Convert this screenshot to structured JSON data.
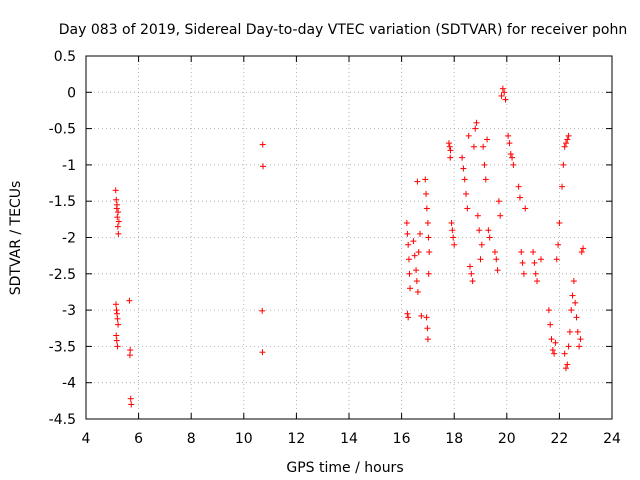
{
  "chart_data": {
    "type": "scatter",
    "title": "Day 083 of 2019, Sidereal Day-to-day VTEC variation (SDTVAR) for receiver pohn",
    "xlabel": "GPS time / hours",
    "ylabel": "SDTVAR / TECUs",
    "xlim": [
      4,
      24
    ],
    "ylim": [
      -4.5,
      0.5
    ],
    "xticks": [
      4,
      6,
      8,
      10,
      12,
      14,
      16,
      18,
      20,
      22,
      24
    ],
    "xtick_labels": [
      "4",
      "6",
      "8",
      "10",
      "12",
      "14",
      "16",
      "18",
      "20",
      "22",
      "24"
    ],
    "yticks": [
      0.5,
      0,
      -0.5,
      -1,
      -1.5,
      -2,
      -2.5,
      -3,
      -3.5,
      -4,
      -4.5
    ],
    "ytick_labels": [
      "0.5",
      "0",
      "-0.5",
      "-1",
      "-1.5",
      "-2",
      "-2.5",
      "-3",
      "-3.5",
      "-4",
      "-4.5"
    ],
    "grid": true,
    "marker": "+",
    "series": [
      {
        "name": "SDTVAR",
        "color": "#ff0000",
        "points": [
          [
            5.13,
            -1.35
          ],
          [
            5.15,
            -1.48
          ],
          [
            5.17,
            -1.6
          ],
          [
            5.19,
            -1.72
          ],
          [
            5.21,
            -1.85
          ],
          [
            5.23,
            -1.95
          ],
          [
            5.18,
            -1.55
          ],
          [
            5.22,
            -1.65
          ],
          [
            5.25,
            -1.78
          ],
          [
            5.14,
            -2.92
          ],
          [
            5.16,
            -3.0
          ],
          [
            5.18,
            -3.05
          ],
          [
            5.2,
            -3.12
          ],
          [
            5.22,
            -3.2
          ],
          [
            5.15,
            -3.35
          ],
          [
            5.17,
            -3.42
          ],
          [
            5.2,
            -3.5
          ],
          [
            5.65,
            -2.87
          ],
          [
            5.68,
            -3.55
          ],
          [
            5.67,
            -3.62
          ],
          [
            5.7,
            -4.22
          ],
          [
            5.72,
            -4.3
          ],
          [
            10.72,
            -0.72
          ],
          [
            10.73,
            -1.02
          ],
          [
            10.7,
            -3.01
          ],
          [
            10.71,
            -3.58
          ],
          [
            16.2,
            -1.8
          ],
          [
            16.22,
            -1.95
          ],
          [
            16.25,
            -2.1
          ],
          [
            16.28,
            -2.3
          ],
          [
            16.3,
            -2.5
          ],
          [
            16.32,
            -2.7
          ],
          [
            16.22,
            -3.05
          ],
          [
            16.25,
            -3.1
          ],
          [
            16.45,
            -2.05
          ],
          [
            16.5,
            -2.25
          ],
          [
            16.55,
            -2.45
          ],
          [
            16.58,
            -2.6
          ],
          [
            16.6,
            -1.23
          ],
          [
            16.62,
            -2.75
          ],
          [
            16.65,
            -2.2
          ],
          [
            16.7,
            -1.95
          ],
          [
            16.75,
            -3.08
          ],
          [
            16.9,
            -1.2
          ],
          [
            16.93,
            -1.4
          ],
          [
            16.96,
            -1.6
          ],
          [
            17.0,
            -1.8
          ],
          [
            17.02,
            -2.0
          ],
          [
            17.05,
            -2.2
          ],
          [
            16.95,
            -3.1
          ],
          [
            16.98,
            -3.25
          ],
          [
            17.0,
            -3.4
          ],
          [
            17.03,
            -2.5
          ],
          [
            17.8,
            -0.7
          ],
          [
            17.83,
            -0.75
          ],
          [
            17.86,
            -0.8
          ],
          [
            17.9,
            -1.8
          ],
          [
            17.93,
            -1.9
          ],
          [
            17.96,
            -2.0
          ],
          [
            18.0,
            -2.1
          ],
          [
            17.85,
            -0.9
          ],
          [
            18.3,
            -0.9
          ],
          [
            18.35,
            -1.05
          ],
          [
            18.4,
            -1.2
          ],
          [
            18.45,
            -1.4
          ],
          [
            18.5,
            -1.6
          ],
          [
            18.55,
            -0.6
          ],
          [
            18.6,
            -2.4
          ],
          [
            18.65,
            -2.5
          ],
          [
            18.7,
            -2.6
          ],
          [
            18.75,
            -0.75
          ],
          [
            18.8,
            -0.5
          ],
          [
            18.85,
            -0.42
          ],
          [
            18.9,
            -1.7
          ],
          [
            18.95,
            -1.9
          ],
          [
            19.0,
            -2.3
          ],
          [
            19.05,
            -2.1
          ],
          [
            19.1,
            -0.75
          ],
          [
            19.15,
            -1.0
          ],
          [
            19.2,
            -1.2
          ],
          [
            19.25,
            -0.65
          ],
          [
            19.3,
            -1.9
          ],
          [
            19.35,
            -2.0
          ],
          [
            19.55,
            -2.2
          ],
          [
            19.6,
            -2.3
          ],
          [
            19.65,
            -2.45
          ],
          [
            19.7,
            -1.5
          ],
          [
            19.75,
            -1.7
          ],
          [
            19.8,
            -0.05
          ],
          [
            19.85,
            0.05
          ],
          [
            19.9,
            0.0
          ],
          [
            19.95,
            -0.1
          ],
          [
            20.05,
            -0.6
          ],
          [
            20.1,
            -0.7
          ],
          [
            20.15,
            -0.85
          ],
          [
            20.2,
            -0.9
          ],
          [
            20.25,
            -1.0
          ],
          [
            20.45,
            -1.3
          ],
          [
            20.5,
            -1.45
          ],
          [
            20.55,
            -2.2
          ],
          [
            20.6,
            -2.35
          ],
          [
            20.65,
            -2.5
          ],
          [
            20.7,
            -1.6
          ],
          [
            21.0,
            -2.2
          ],
          [
            21.05,
            -2.35
          ],
          [
            21.1,
            -2.5
          ],
          [
            21.15,
            -2.6
          ],
          [
            21.3,
            -2.3
          ],
          [
            21.6,
            -3.0
          ],
          [
            21.65,
            -3.2
          ],
          [
            21.7,
            -3.4
          ],
          [
            21.75,
            -3.55
          ],
          [
            21.8,
            -3.6
          ],
          [
            21.85,
            -3.45
          ],
          [
            21.9,
            -2.3
          ],
          [
            21.95,
            -2.1
          ],
          [
            22.0,
            -1.8
          ],
          [
            22.1,
            -1.3
          ],
          [
            22.15,
            -1.0
          ],
          [
            22.2,
            -0.75
          ],
          [
            22.25,
            -0.7
          ],
          [
            22.3,
            -0.65
          ],
          [
            22.35,
            -0.6
          ],
          [
            22.2,
            -3.6
          ],
          [
            22.25,
            -3.8
          ],
          [
            22.3,
            -3.75
          ],
          [
            22.35,
            -3.5
          ],
          [
            22.4,
            -3.3
          ],
          [
            22.45,
            -3.0
          ],
          [
            22.5,
            -2.8
          ],
          [
            22.55,
            -2.6
          ],
          [
            22.6,
            -2.9
          ],
          [
            22.65,
            -3.1
          ],
          [
            22.7,
            -3.3
          ],
          [
            22.75,
            -3.5
          ],
          [
            22.8,
            -3.4
          ],
          [
            22.85,
            -2.2
          ],
          [
            22.9,
            -2.15
          ]
        ]
      }
    ]
  }
}
